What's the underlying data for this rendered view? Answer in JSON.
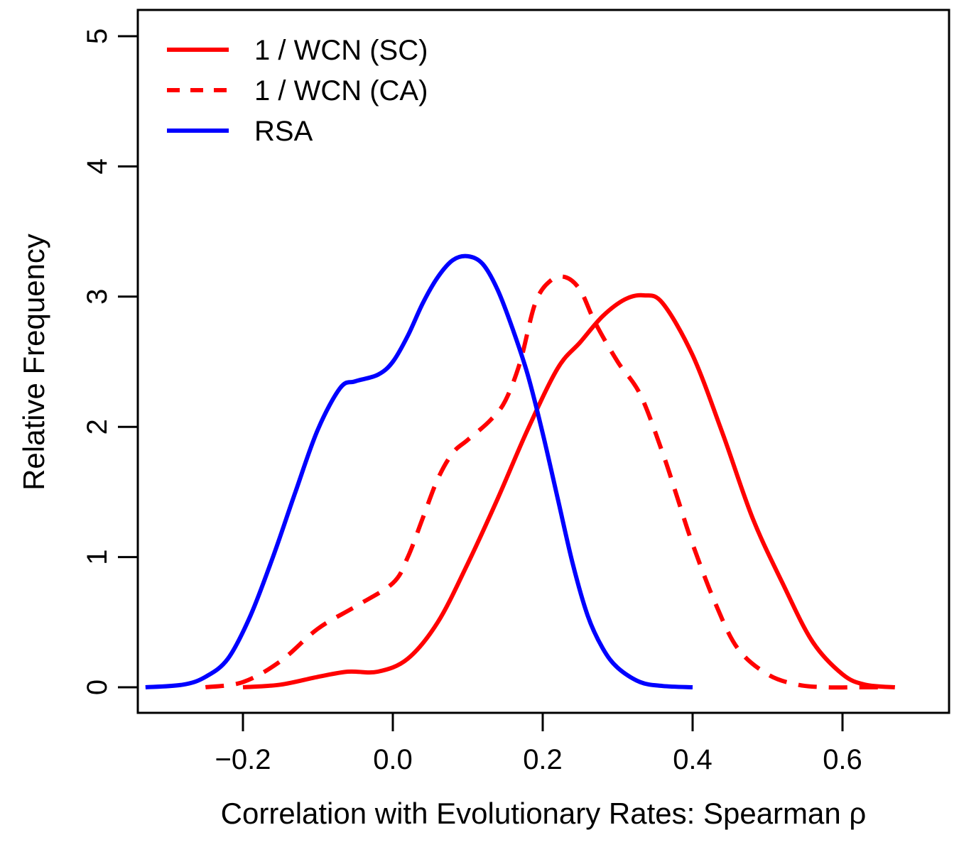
{
  "chart_data": {
    "type": "line",
    "title": "",
    "xlabel": "Correlation with Evolutionary Rates: Spearman ρ",
    "ylabel": "Relative Frequency",
    "xlim": [
      -0.35,
      0.7
    ],
    "ylim": [
      -0.2,
      5.2
    ],
    "x_ticks": [
      {
        "value": -0.2,
        "label": "−0.2"
      },
      {
        "value": 0.0,
        "label": "0.0"
      },
      {
        "value": 0.2,
        "label": "0.2"
      },
      {
        "value": 0.4,
        "label": "0.4"
      },
      {
        "value": 0.6,
        "label": "0.6"
      }
    ],
    "y_ticks": [
      {
        "value": 0,
        "label": "0"
      },
      {
        "value": 1,
        "label": "1"
      },
      {
        "value": 2,
        "label": "2"
      },
      {
        "value": 3,
        "label": "3"
      },
      {
        "value": 4,
        "label": "4"
      },
      {
        "value": 5,
        "label": "5"
      }
    ],
    "grid": false,
    "legend_position": "top-left",
    "series": [
      {
        "name": "1 / WCN (SC)",
        "color": "#ff0000",
        "dash": "solid",
        "x": [
          -0.2,
          -0.15,
          -0.1,
          -0.06,
          -0.02,
          0.02,
          0.06,
          0.1,
          0.14,
          0.18,
          0.22,
          0.25,
          0.28,
          0.31,
          0.335,
          0.36,
          0.4,
          0.44,
          0.48,
          0.52,
          0.56,
          0.6,
          0.63,
          0.67
        ],
        "y": [
          0.0,
          0.02,
          0.08,
          0.12,
          0.12,
          0.22,
          0.5,
          0.95,
          1.45,
          1.98,
          2.45,
          2.65,
          2.85,
          2.98,
          3.01,
          2.95,
          2.55,
          1.95,
          1.3,
          0.8,
          0.35,
          0.1,
          0.02,
          0.0
        ]
      },
      {
        "name": "1 / WCN (CA)",
        "color": "#ff0000",
        "dash": "dashed",
        "x": [
          -0.25,
          -0.2,
          -0.15,
          -0.1,
          -0.05,
          0.0,
          0.02,
          0.04,
          0.06,
          0.08,
          0.1,
          0.13,
          0.15,
          0.17,
          0.19,
          0.21,
          0.23,
          0.25,
          0.27,
          0.3,
          0.33,
          0.36,
          0.38,
          0.4,
          0.43,
          0.46,
          0.5,
          0.54,
          0.58,
          0.62,
          0.65
        ],
        "y": [
          0.0,
          0.04,
          0.2,
          0.45,
          0.62,
          0.8,
          1.0,
          1.3,
          1.6,
          1.8,
          1.9,
          2.05,
          2.2,
          2.5,
          2.95,
          3.12,
          3.15,
          3.05,
          2.8,
          2.5,
          2.25,
          1.8,
          1.45,
          1.1,
          0.65,
          0.3,
          0.1,
          0.02,
          0.0,
          0.0,
          0.0
        ]
      },
      {
        "name": "RSA",
        "color": "#0000ff",
        "dash": "solid",
        "x": [
          -0.33,
          -0.28,
          -0.25,
          -0.22,
          -0.19,
          -0.16,
          -0.13,
          -0.1,
          -0.07,
          -0.05,
          -0.02,
          0.0,
          0.02,
          0.04,
          0.06,
          0.08,
          0.1,
          0.12,
          0.14,
          0.16,
          0.18,
          0.2,
          0.22,
          0.24,
          0.26,
          0.28,
          0.3,
          0.33,
          0.36,
          0.4
        ],
        "y": [
          0.0,
          0.02,
          0.08,
          0.22,
          0.55,
          1.0,
          1.5,
          1.98,
          2.3,
          2.35,
          2.4,
          2.5,
          2.7,
          2.95,
          3.15,
          3.28,
          3.31,
          3.25,
          3.05,
          2.75,
          2.4,
          1.95,
          1.45,
          0.95,
          0.55,
          0.3,
          0.15,
          0.04,
          0.01,
          0.0
        ]
      }
    ]
  }
}
